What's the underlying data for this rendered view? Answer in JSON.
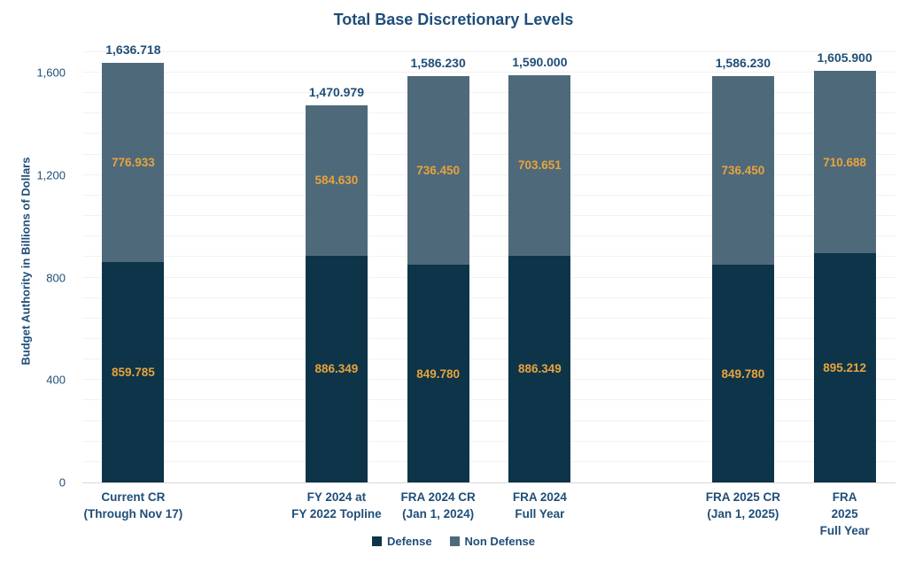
{
  "chart_data": {
    "type": "bar",
    "stacked": true,
    "title": "Total Base Discretionary Levels",
    "xlabel": "",
    "ylabel": "Budget Authority in Billions of Dollars",
    "ylim": [
      0,
      1700
    ],
    "grid": true,
    "legend_position": "bottom",
    "axis": {
      "tick_values": [
        0,
        400,
        800,
        1200,
        1600
      ],
      "tick_labels": [
        "0",
        "400",
        "800",
        "1,200",
        "1,600"
      ],
      "minor_unit": 80,
      "gridline_max": 1680
    },
    "categories": [
      {
        "lines": [
          "Current CR",
          "(Through Nov 17)"
        ]
      },
      {
        "lines": [
          "FY 2024 at",
          "FY 2022 Topline"
        ]
      },
      {
        "lines": [
          "FRA 2024 CR",
          "(Jan 1, 2024)"
        ]
      },
      {
        "lines": [
          "FRA 2024",
          "Full Year"
        ]
      },
      {
        "lines": [
          "FRA 2025 CR",
          "(Jan 1, 2025)"
        ]
      },
      {
        "lines": [
          "FRA 2025",
          "Full Year"
        ]
      }
    ],
    "slot_layout": [
      0,
      null,
      1,
      2,
      3,
      null,
      4,
      5
    ],
    "series": [
      {
        "name": "Defense",
        "color": "#0D3449",
        "values": [
          859.785,
          886.349,
          849.78,
          886.349,
          849.78,
          895.212
        ],
        "labels": [
          "859.785",
          "886.349",
          "849.780",
          "886.349",
          "849.780",
          "895.212"
        ]
      },
      {
        "name": "Non Defense",
        "color": "#4E697A",
        "values": [
          776.933,
          584.63,
          736.45,
          703.651,
          736.45,
          710.688
        ],
        "labels": [
          "776.933",
          "584.630",
          "736.450",
          "703.651",
          "736.450",
          "710.688"
        ]
      }
    ],
    "totals": [
      "1,636.718",
      "1,470.979",
      "1,586.230",
      "1,590.000",
      "1,586.230",
      "1,605.900"
    ]
  },
  "colors": {
    "defense": "#0D3449",
    "non_defense": "#4E697A",
    "value_label": "#E8A33D",
    "text": "#1F4E79",
    "gridline": "#F2F2F2",
    "axis_line": "#D9D9D9"
  }
}
